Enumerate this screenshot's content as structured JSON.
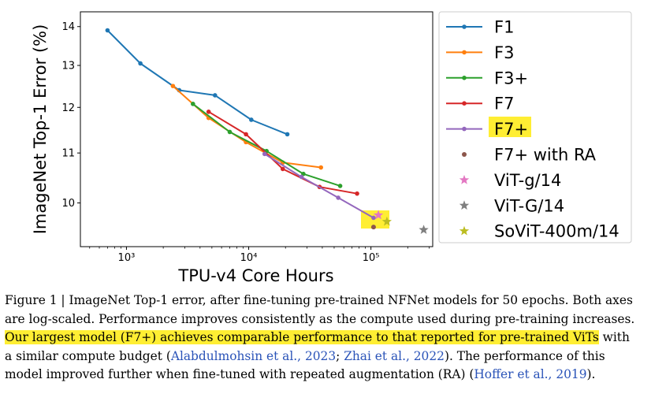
{
  "chart_data": {
    "type": "line",
    "xlabel": "TPU-v4 Core Hours",
    "ylabel": "ImageNet Top-1 Error (%)",
    "xscale": "log",
    "yscale": "log",
    "xlim": [
      420,
      320000
    ],
    "ylim": [
      9.2,
      14.4
    ],
    "xticks": [
      {
        "value": 1000,
        "label": "10³"
      },
      {
        "value": 10000,
        "label": "10⁴"
      },
      {
        "value": 100000,
        "label": "10⁵"
      }
    ],
    "yticks": [
      {
        "value": 10,
        "label": "10"
      },
      {
        "value": 11,
        "label": "11"
      },
      {
        "value": 12,
        "label": "12"
      },
      {
        "value": 13,
        "label": "13"
      },
      {
        "value": 14,
        "label": "14"
      }
    ],
    "legend_position": "right, outside plot",
    "series": [
      {
        "name": "F1",
        "kind": "line",
        "color": "#1f77b4",
        "x": [
          700,
          1300,
          2700,
          5300,
          10500,
          20700
        ],
        "y": [
          13.9,
          13.05,
          12.4,
          12.28,
          11.72,
          11.4
        ]
      },
      {
        "name": "F3",
        "kind": "line",
        "color": "#ff7f0e",
        "x": [
          2400,
          4700,
          9500,
          19000,
          39000
        ],
        "y": [
          12.5,
          11.76,
          11.23,
          10.8,
          10.7
        ]
      },
      {
        "name": "F3+",
        "kind": "line",
        "color": "#2ca02c",
        "x": [
          3500,
          7000,
          14000,
          28000,
          56000
        ],
        "y": [
          12.08,
          11.45,
          11.04,
          10.57,
          10.33
        ]
      },
      {
        "name": "F7",
        "kind": "line",
        "color": "#d62728",
        "x": [
          4700,
          9500,
          19000,
          38000,
          77000
        ],
        "y": [
          11.9,
          11.4,
          10.67,
          10.31,
          10.18
        ]
      },
      {
        "name": "F7+",
        "kind": "line",
        "color": "#9467bd",
        "highlight": true,
        "x": [
          13500,
          27000,
          54000,
          105000
        ],
        "y": [
          10.98,
          10.51,
          10.1,
          9.72
        ]
      },
      {
        "name": "F7+ with RA",
        "kind": "point",
        "marker": "circle",
        "color": "#8c564b",
        "x": [
          105000
        ],
        "y": [
          9.55
        ]
      },
      {
        "name": "ViT-g/14",
        "kind": "point",
        "marker": "star",
        "color": "#e377c2",
        "x": [
          115000
        ],
        "y": [
          9.77
        ]
      },
      {
        "name": "ViT-G/14",
        "kind": "point",
        "marker": "star",
        "color": "#7f7f7f",
        "x": [
          270000
        ],
        "y": [
          9.5
        ]
      },
      {
        "name": "SoViT-400m/14",
        "kind": "point",
        "marker": "star",
        "color": "#bcbd22",
        "x": [
          135000
        ],
        "y": [
          9.65
        ]
      }
    ]
  },
  "caption": {
    "line1": "Figure 1 | ImageNet Top-1 error, after fine-tuning pre-trained NFNet models for 50 epochs. Both axes",
    "line2": "are log-scaled. Performance improves consistently as the compute used during pre-training increases.",
    "line3_highlight": "Our largest model (F7+) achieves comparable performance to that reported for pre-trained ViTs",
    "line3_rest": " with",
    "line4_a": "a similar compute budget (",
    "line4_cite1": "Alabdulmohsin et al., 2023",
    "line4_b": "; ",
    "line4_cite2": "Zhai et al., 2022",
    "line4_c": "). The performance of this",
    "line5_a": "model improved further when fine-tuned with repeated augmentation (RA) (",
    "line5_cite": "Hoffer et al., 2019",
    "line5_b": ")."
  },
  "highlight_color": "#ffee33"
}
